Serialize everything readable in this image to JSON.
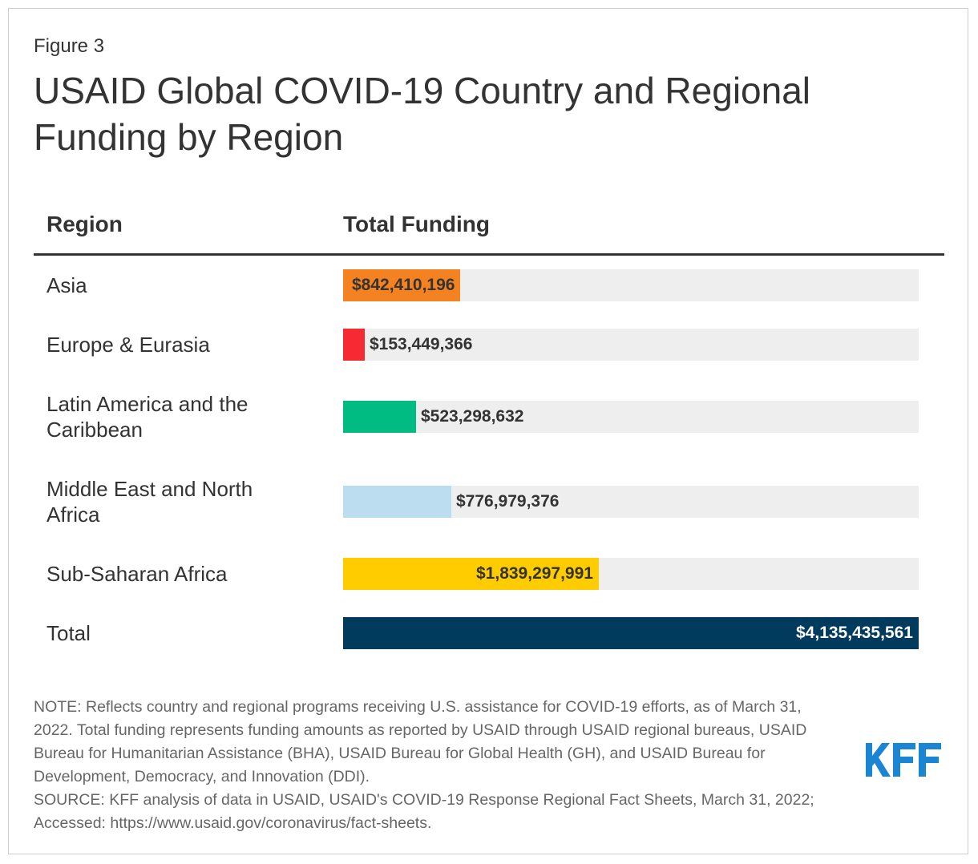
{
  "figure_label": "Figure 3",
  "title": "USAID Global COVID-19 Country and Regional Funding by Region",
  "column_headers": {
    "region": "Region",
    "funding": "Total Funding"
  },
  "chart_data": {
    "type": "bar",
    "orientation": "horizontal",
    "xlim": [
      0,
      4135435561
    ],
    "rows": [
      {
        "category": "Asia",
        "value": 842410196,
        "label": "$842,410,196",
        "color": "#f58220"
      },
      {
        "category": "Europe & Eurasia",
        "value": 153449366,
        "label": "$153,449,366",
        "color": "#f52a33"
      },
      {
        "category": "Latin America and the Caribbean",
        "value": 523298632,
        "label": "$523,298,632",
        "color": "#00bc82"
      },
      {
        "category": "Middle East and North Africa",
        "value": 776979376,
        "label": "$776,979,376",
        "color": "#bcdcf0"
      },
      {
        "category": "Sub-Saharan Africa",
        "value": 1839297991,
        "label": "$1,839,297,991",
        "color": "#ffcc00"
      },
      {
        "category": "Total",
        "value": 4135435561,
        "label": "$4,135,435,561",
        "color": "#003a5d"
      }
    ],
    "track_color": "#eeeeee",
    "grid": false,
    "legend": "none"
  },
  "note": "NOTE: Reflects country and regional programs receiving U.S. assistance for COVID-19 efforts, as of March 31, 2022. Total funding represents funding amounts as reported by USAID through USAID regional bureaus, USAID Bureau for Humanitarian Assistance (BHA), USAID Bureau for Global Health (GH), and USAID Bureau for Development, Democracy, and Innovation (DDI).",
  "source": "SOURCE: KFF analysis of data in USAID, USAID's COVID-19 Response Regional Fact Sheets, March 31, 2022; Accessed: https://www.usaid.gov/coronavirus/fact-sheets.",
  "logo": {
    "text": "KFF",
    "color": "#1a86d3"
  }
}
